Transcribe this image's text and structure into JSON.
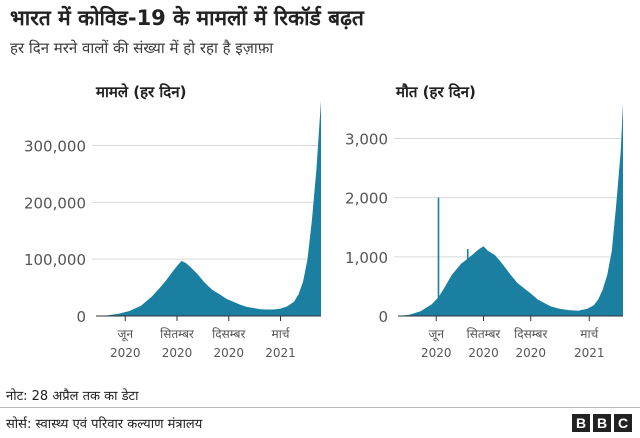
{
  "title": "भारत में कोविड-19 के मामलों में रिकॉर्ड बढ़त",
  "subtitle": "हर दिन मरने वालों की संख्या में हो रहा है इज़ाफ़ा",
  "note": "नोट: 28 अप्रैल तक का डेटा",
  "source": "सोर्स: स्वास्थ्य एवं परिवार कल्याण मंत्रालय",
  "logo_letters": [
    "B",
    "B",
    "C"
  ],
  "colors": {
    "bar": "#1a7fa0",
    "grid": "#d9d9d9",
    "axis": "#333333"
  },
  "chart_data": [
    {
      "type": "area",
      "title": "मामले (हर दिन)",
      "ylim": [
        0,
        380000
      ],
      "yticks": [
        {
          "value": 0,
          "label": "0"
        },
        {
          "value": 100000,
          "label": "100,000"
        },
        {
          "value": 200000,
          "label": "200,000"
        },
        {
          "value": 300000,
          "label": "300,000"
        }
      ],
      "xticks": [
        {
          "pos": 0.13,
          "line1": "जून",
          "line2": "2020"
        },
        {
          "pos": 0.36,
          "line1": "सितम्बर",
          "line2": "2020"
        },
        {
          "pos": 0.59,
          "line1": "दिसम्बर",
          "line2": "2020"
        },
        {
          "pos": 0.82,
          "line1": "मार्च",
          "line2": "2021"
        }
      ],
      "x": [
        0,
        0.05,
        0.1,
        0.15,
        0.2,
        0.25,
        0.28,
        0.31,
        0.34,
        0.36,
        0.38,
        0.4,
        0.42,
        0.45,
        0.48,
        0.5,
        0.52,
        0.55,
        0.58,
        0.61,
        0.64,
        0.67,
        0.7,
        0.73,
        0.76,
        0.79,
        0.82,
        0.85,
        0.88,
        0.9,
        0.92,
        0.94,
        0.96,
        0.98,
        1.0
      ],
      "values": [
        0,
        1000,
        4000,
        9000,
        18000,
        35000,
        48000,
        62000,
        78000,
        88000,
        97000,
        93000,
        86000,
        74000,
        60000,
        52000,
        45000,
        38000,
        30000,
        25000,
        20000,
        16000,
        14000,
        12000,
        11500,
        11500,
        13000,
        17000,
        25000,
        38000,
        60000,
        100000,
        170000,
        260000,
        379000
      ]
    },
    {
      "type": "area",
      "title": "मौत (हर दिन)",
      "ylim": [
        0,
        3650
      ],
      "yticks": [
        {
          "value": 0,
          "label": "0"
        },
        {
          "value": 1000,
          "label": "1,000"
        },
        {
          "value": 2000,
          "label": "2,000"
        },
        {
          "value": 3000,
          "label": "3,000"
        }
      ],
      "xticks": [
        {
          "pos": 0.17,
          "line1": "जून",
          "line2": "2020"
        },
        {
          "pos": 0.38,
          "line1": "सितम्बर",
          "line2": "2020"
        },
        {
          "pos": 0.59,
          "line1": "दिसम्बर",
          "line2": "2020"
        },
        {
          "pos": 0.85,
          "line1": "मार्च",
          "line2": "2021"
        }
      ],
      "x": [
        0,
        0.05,
        0.1,
        0.15,
        0.18,
        0.2,
        0.24,
        0.28,
        0.32,
        0.36,
        0.38,
        0.4,
        0.43,
        0.46,
        0.5,
        0.53,
        0.56,
        0.59,
        0.62,
        0.65,
        0.68,
        0.72,
        0.76,
        0.8,
        0.84,
        0.87,
        0.89,
        0.91,
        0.93,
        0.95,
        0.97,
        0.99,
        1.0
      ],
      "values": [
        0,
        20,
        80,
        200,
        320,
        440,
        700,
        880,
        1000,
        1130,
        1180,
        1100,
        1030,
        900,
        700,
        560,
        470,
        380,
        280,
        220,
        160,
        120,
        100,
        90,
        120,
        180,
        280,
        450,
        700,
        1100,
        1900,
        2800,
        3600
      ],
      "spikes": [
        {
          "x": 0.18,
          "value": 2000
        },
        {
          "x": 0.31,
          "value": 1130
        }
      ]
    }
  ]
}
